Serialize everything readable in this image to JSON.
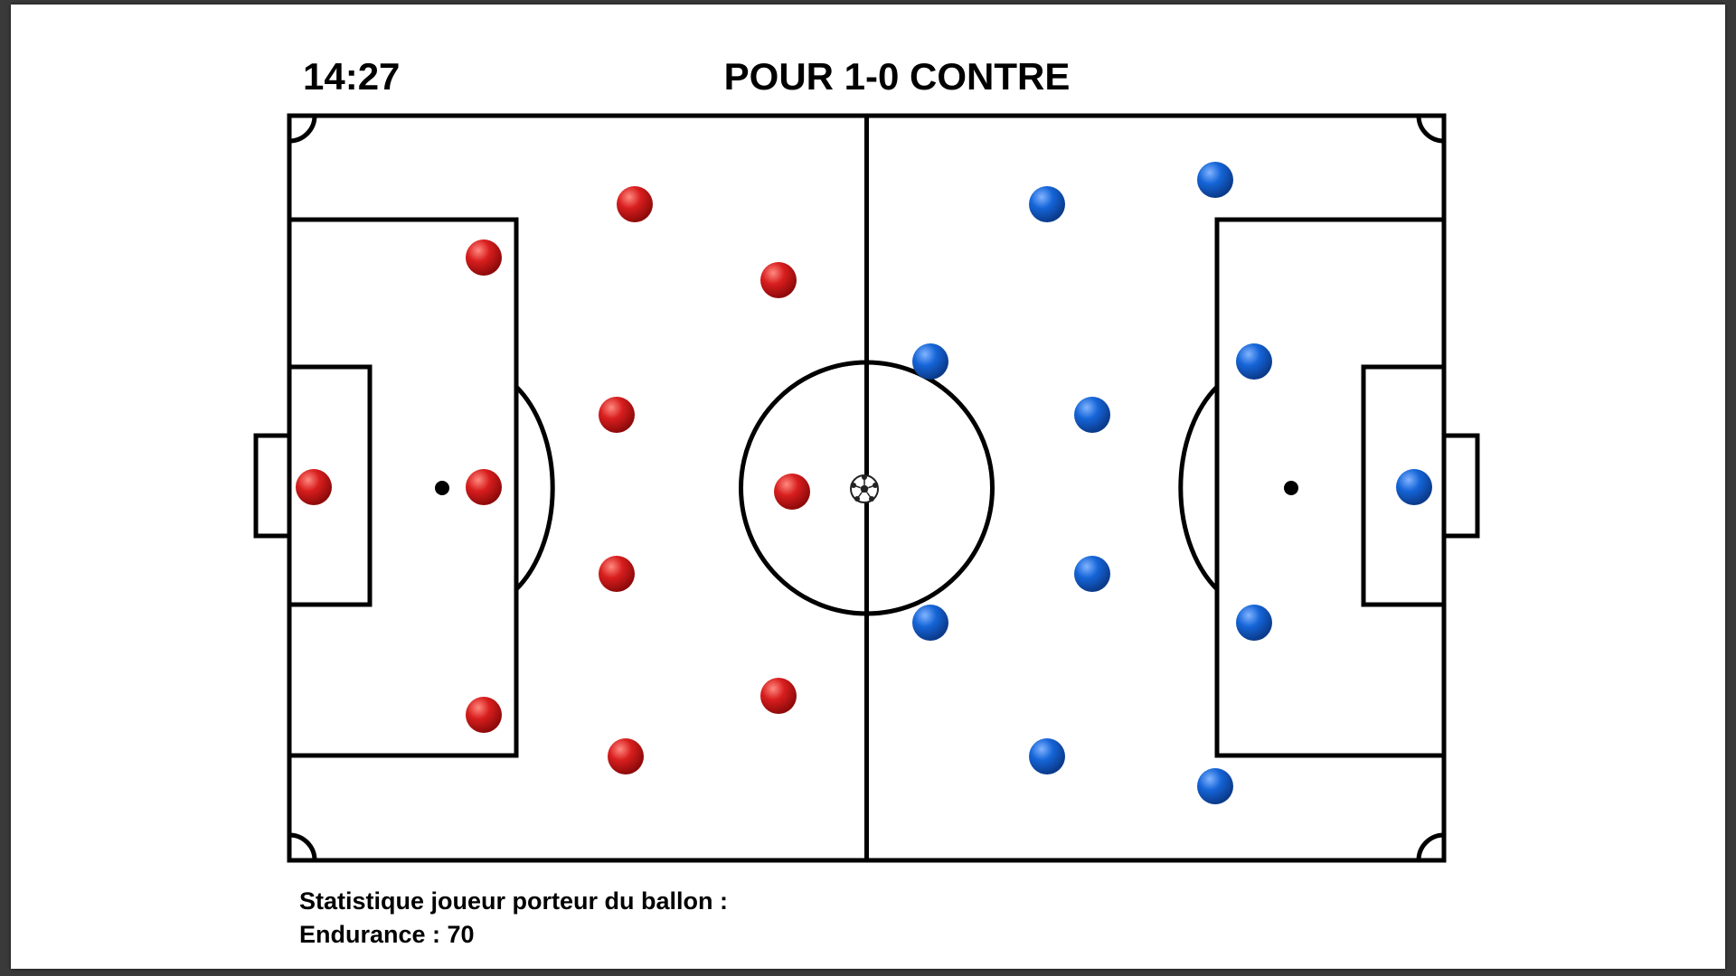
{
  "match": {
    "clock": "14:27",
    "score": "POUR 1-0 CONTRE"
  },
  "teams": {
    "home": {
      "color": "#d81e1e",
      "highlight": "#ff8a80",
      "shade": "#8e0a0a"
    },
    "away": {
      "color": "#1565d8",
      "highlight": "#82b4ff",
      "shade": "#0b3a8a"
    }
  },
  "ball": {
    "icon": "soccer-ball-icon"
  },
  "stats": {
    "heading": "Statistique joueur porteur du ballon :",
    "endurance_line": "Endurance : 70",
    "endurance_value": 70
  }
}
